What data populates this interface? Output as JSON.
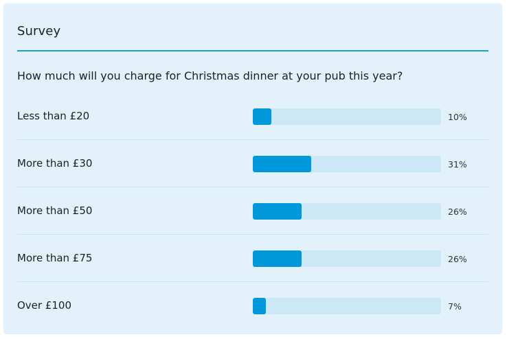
{
  "survey": {
    "title": "Survey",
    "question": "How much will you charge for Christmas dinner at your pub this year?",
    "options": [
      {
        "label": "Less than £20",
        "percent": 10,
        "percent_text": "10%"
      },
      {
        "label": "More than £30",
        "percent": 31,
        "percent_text": "31%"
      },
      {
        "label": "More than £50",
        "percent": 26,
        "percent_text": "26%"
      },
      {
        "label": "More than £75",
        "percent": 26,
        "percent_text": "26%"
      },
      {
        "label": "Over £100",
        "percent": 7,
        "percent_text": "7%"
      }
    ]
  },
  "colors": {
    "card_background": "#e3f2fa",
    "accent": "#1a9fcf",
    "bar_fill": "#0098db",
    "bar_track": "#cce8f6",
    "row_divider": "#c5e3f3"
  }
}
